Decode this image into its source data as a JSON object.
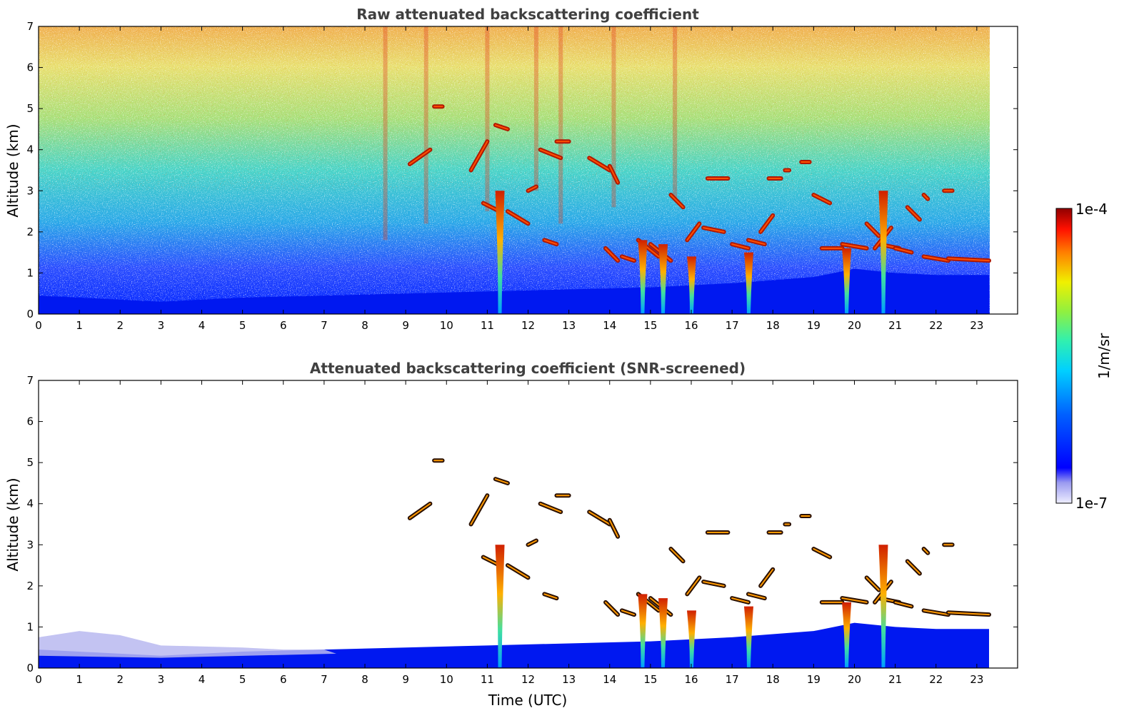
{
  "chart_data": [
    {
      "type": "heatmap",
      "id": "raw",
      "title": "Raw attenuated backscattering coefficient",
      "xlabel": "",
      "ylabel": "Altitude (km)",
      "xlim": [
        0,
        24
      ],
      "ylim": [
        0,
        7
      ],
      "x_ticks": [
        "0",
        "1",
        "2",
        "3",
        "4",
        "5",
        "6",
        "7",
        "8",
        "9",
        "10",
        "11",
        "12",
        "13",
        "14",
        "15",
        "16",
        "17",
        "18",
        "19",
        "20",
        "21",
        "22",
        "23"
      ],
      "y_ticks": [
        "0",
        "1",
        "2",
        "3",
        "4",
        "5",
        "6",
        "7"
      ],
      "data_end_x": 23.3,
      "screened": false
    },
    {
      "type": "heatmap",
      "id": "screened",
      "title": "Attenuated backscattering coefficient (SNR-screened)",
      "xlabel": "Time (UTC)",
      "ylabel": "Altitude (km)",
      "xlim": [
        0,
        24
      ],
      "ylim": [
        0,
        7
      ],
      "x_ticks": [
        "0",
        "1",
        "2",
        "3",
        "4",
        "5",
        "6",
        "7",
        "8",
        "9",
        "10",
        "11",
        "12",
        "13",
        "14",
        "15",
        "16",
        "17",
        "18",
        "19",
        "20",
        "21",
        "22",
        "23"
      ],
      "y_ticks": [
        "0",
        "1",
        "2",
        "3",
        "4",
        "5",
        "6",
        "7"
      ],
      "data_end_x": 23.3,
      "screened": true
    }
  ],
  "colorbar": {
    "label": "1/m/sr",
    "max_label": "1e-4",
    "min_label": "1e-7",
    "colormap": "jet",
    "scale": "log"
  },
  "features": {
    "boundary_layer": [
      [
        0,
        0.45
      ],
      [
        2,
        0.35
      ],
      [
        3,
        0.3
      ],
      [
        5,
        0.4
      ],
      [
        7,
        0.45
      ],
      [
        9,
        0.5
      ],
      [
        11,
        0.55
      ],
      [
        13,
        0.6
      ],
      [
        15,
        0.65
      ],
      [
        17,
        0.75
      ],
      [
        19,
        0.9
      ],
      [
        20,
        1.1
      ],
      [
        21,
        1.0
      ],
      [
        22,
        0.95
      ],
      [
        23.3,
        0.95
      ]
    ],
    "cloud_segments": [
      [
        9.1,
        3.65,
        9.6,
        4.0
      ],
      [
        9.7,
        5.05,
        9.9,
        5.05
      ],
      [
        10.6,
        3.5,
        11.0,
        4.2
      ],
      [
        10.9,
        2.7,
        11.3,
        2.5
      ],
      [
        11.2,
        4.6,
        11.5,
        4.5
      ],
      [
        11.5,
        2.5,
        12.0,
        2.2
      ],
      [
        12.0,
        3.0,
        12.2,
        3.1
      ],
      [
        12.3,
        4.0,
        12.8,
        3.8
      ],
      [
        12.7,
        4.2,
        13.0,
        4.2
      ],
      [
        12.4,
        1.8,
        12.7,
        1.7
      ],
      [
        13.5,
        3.8,
        14.0,
        3.5
      ],
      [
        14.0,
        3.6,
        14.2,
        3.2
      ],
      [
        13.9,
        1.6,
        14.2,
        1.3
      ],
      [
        14.3,
        1.4,
        14.6,
        1.3
      ],
      [
        14.7,
        1.8,
        15.2,
        1.4
      ],
      [
        15.0,
        1.7,
        15.5,
        1.3
      ],
      [
        15.5,
        2.9,
        15.8,
        2.6
      ],
      [
        15.9,
        1.8,
        16.2,
        2.2
      ],
      [
        16.3,
        2.1,
        16.8,
        2.0
      ],
      [
        16.4,
        3.3,
        16.9,
        3.3
      ],
      [
        17.0,
        1.7,
        17.4,
        1.6
      ],
      [
        17.4,
        1.8,
        17.8,
        1.7
      ],
      [
        17.7,
        2.0,
        18.0,
        2.4
      ],
      [
        17.9,
        3.3,
        18.2,
        3.3
      ],
      [
        18.3,
        3.5,
        18.4,
        3.5
      ],
      [
        18.7,
        3.7,
        18.9,
        3.7
      ],
      [
        19.0,
        2.9,
        19.4,
        2.7
      ],
      [
        19.2,
        1.6,
        19.7,
        1.6
      ],
      [
        19.7,
        1.7,
        20.3,
        1.6
      ],
      [
        20.3,
        2.2,
        20.6,
        1.9
      ],
      [
        20.6,
        1.7,
        21.1,
        1.6
      ],
      [
        20.5,
        1.6,
        20.9,
        2.1
      ],
      [
        21.0,
        1.6,
        21.4,
        1.5
      ],
      [
        21.3,
        2.6,
        21.6,
        2.3
      ],
      [
        21.7,
        2.9,
        21.8,
        2.8
      ],
      [
        22.2,
        3.0,
        22.4,
        3.0
      ],
      [
        21.7,
        1.4,
        22.3,
        1.3
      ],
      [
        22.3,
        1.35,
        23.3,
        1.3
      ]
    ],
    "plumes": [
      [
        11.3,
        3.0
      ],
      [
        14.8,
        1.8
      ],
      [
        15.3,
        1.7
      ],
      [
        16.0,
        1.4
      ],
      [
        17.4,
        1.5
      ],
      [
        19.8,
        1.6
      ],
      [
        20.7,
        3.0
      ]
    ],
    "noise_streaks": [
      [
        8.5,
        1.8
      ],
      [
        9.5,
        2.2
      ],
      [
        11.0,
        2.5
      ],
      [
        12.2,
        3.0
      ],
      [
        12.8,
        2.2
      ],
      [
        14.1,
        2.6
      ],
      [
        15.6,
        2.8
      ]
    ]
  }
}
